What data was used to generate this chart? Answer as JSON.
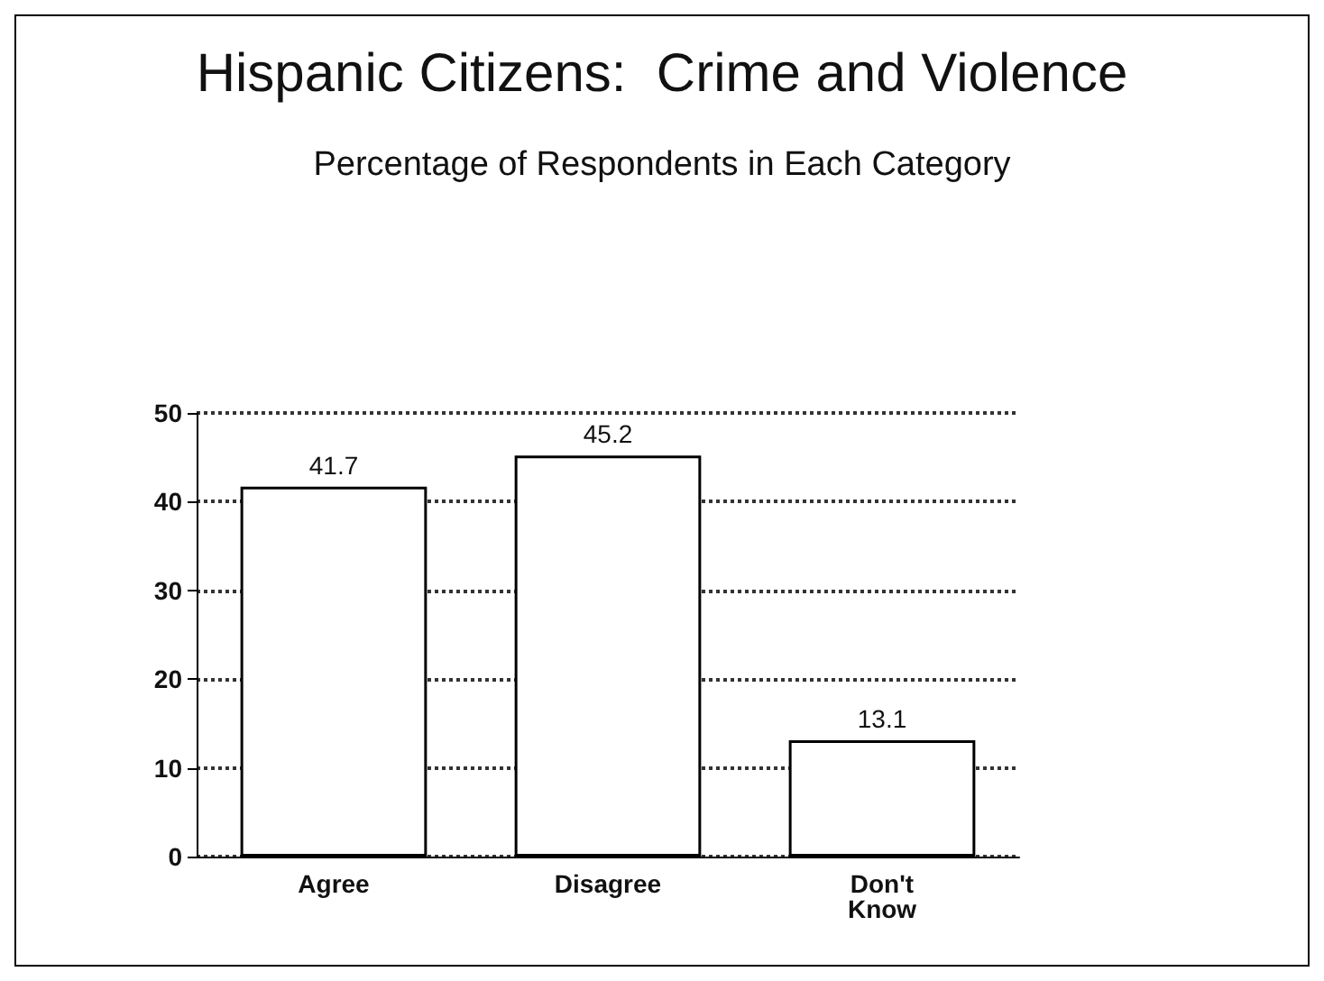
{
  "chart_data": {
    "type": "bar",
    "title": "Hispanic Citizens:  Crime and Violence",
    "subtitle": "Percentage of Respondents in Each Category",
    "categories": [
      "Agree",
      "Disagree",
      "Don't\nKnow"
    ],
    "values": [
      41.7,
      45.2,
      13.1
    ],
    "color": "#ffffff",
    "ylim": [
      0,
      50
    ],
    "yticks": [
      0,
      10,
      20,
      30,
      40,
      50
    ],
    "grid": "y",
    "data_labels": true
  }
}
